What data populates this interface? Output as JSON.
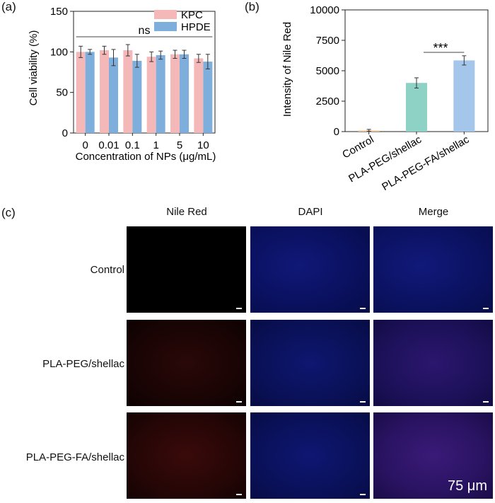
{
  "panels": {
    "a": "(a)",
    "b": "(b)",
    "c": "(c)"
  },
  "chart_data": [
    {
      "type": "bar",
      "panel": "(a)",
      "categories": [
        "0",
        "0.01",
        "0.1",
        "1",
        "5",
        "10"
      ],
      "series": [
        {
          "name": "KPC",
          "color": "#f4b8b8",
          "values": [
            100,
            102,
            102,
            94,
            97,
            92
          ],
          "errors": [
            7,
            5,
            7,
            6,
            5,
            5
          ]
        },
        {
          "name": "HPDE",
          "color": "#7eaedb",
          "values": [
            100,
            93,
            89,
            96,
            97,
            88
          ],
          "errors": [
            3,
            10,
            8,
            5,
            5,
            9
          ]
        }
      ],
      "xlabel": "Concentration of NPs (μg/mL)",
      "ylabel": "Cell viability (%)",
      "ylim": [
        0,
        150
      ],
      "yticks": [
        "0",
        "50",
        "100",
        "150"
      ],
      "annotation": "ns",
      "legend": "top-right",
      "grid": false
    },
    {
      "type": "bar",
      "panel": "(b)",
      "categories": [
        "Control",
        "PLA-PEG/shellac",
        "PLA-PEG-FA/shellac"
      ],
      "values": [
        100,
        4000,
        5850
      ],
      "errors": [
        80,
        420,
        380
      ],
      "colors": [
        "#f7c99b",
        "#8ed2c6",
        "#a3c6ea"
      ],
      "ylabel": "Intensity of Nile Red",
      "ylim": [
        0,
        10000
      ],
      "yticks": [
        "0",
        "2500",
        "5000",
        "7500",
        "10000"
      ],
      "annotation": "***",
      "grid": false
    }
  ],
  "microscopy": {
    "columns": [
      "Nile Red",
      "DAPI",
      "Merge"
    ],
    "rows": [
      "Control",
      "PLA-PEG/shellac",
      "PLA-PEG-FA/shellac"
    ],
    "scale_label": "75 μm"
  }
}
